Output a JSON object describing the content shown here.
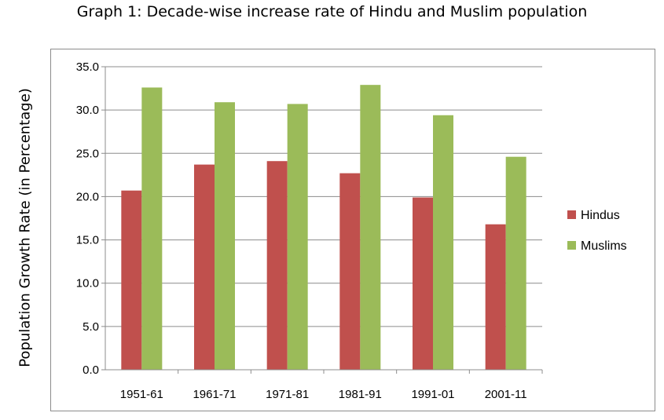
{
  "chart_data": {
    "type": "bar",
    "title": "Graph 1: Decade-wise increase rate of Hindu and Muslim population",
    "ylabel": "Population Growth Rate (in Percentage)",
    "xlabel": "",
    "categories": [
      "1951-61",
      "1961-71",
      "1971-81",
      "1981-91",
      "1991-01",
      "2001-11"
    ],
    "series": [
      {
        "name": "Hindus",
        "color": "#c0504d",
        "values": [
          20.7,
          23.7,
          24.1,
          22.7,
          19.9,
          16.8
        ]
      },
      {
        "name": "Muslims",
        "color": "#9bbb59",
        "values": [
          32.6,
          30.9,
          30.7,
          32.9,
          29.4,
          24.6
        ]
      }
    ],
    "ylim": [
      0,
      35
    ],
    "yticks": [
      "0.0",
      "5.0",
      "10.0",
      "15.0",
      "20.0",
      "25.0",
      "30.0",
      "35.0"
    ],
    "grid": true,
    "legend_position": "right"
  }
}
